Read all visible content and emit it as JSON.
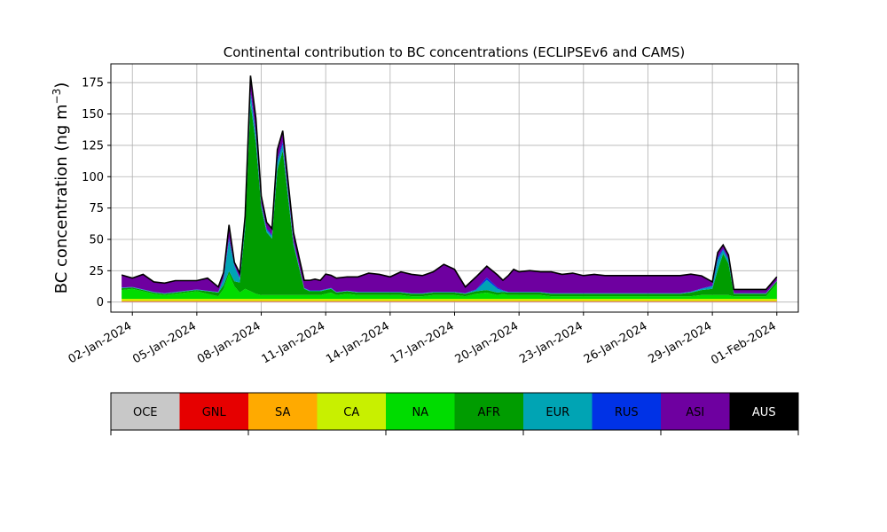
{
  "chart_data": {
    "type": "area",
    "stacked": true,
    "title": "Continental contribution to BC concentrations (ECLIPSEv6 and CAMS)",
    "xlabel": "",
    "ylabel": "BC concentration (ng m",
    "ylabel_sup": "−3",
    "ylabel_close": ")",
    "x_range": [
      "2024-01-01",
      "2024-02-02"
    ],
    "ylim": [
      -8,
      190
    ],
    "yticks": [
      0,
      25,
      50,
      75,
      100,
      125,
      150,
      175
    ],
    "xticks": [
      "02-Jan-2024",
      "05-Jan-2024",
      "08-Jan-2024",
      "11-Jan-2024",
      "14-Jan-2024",
      "17-Jan-2024",
      "20-Jan-2024",
      "23-Jan-2024",
      "26-Jan-2024",
      "29-Jan-2024",
      "01-Feb-2024"
    ],
    "xtick_dates": [
      "2024-01-02",
      "2024-01-05",
      "2024-01-08",
      "2024-01-11",
      "2024-01-14",
      "2024-01-17",
      "2024-01-20",
      "2024-01-23",
      "2024-01-26",
      "2024-01-29",
      "2024-02-01"
    ],
    "grid": true,
    "x": [
      "2024-01-01T12:00",
      "2024-01-02T00:00",
      "2024-01-02T12:00",
      "2024-01-03T00:00",
      "2024-01-03T12:00",
      "2024-01-04T00:00",
      "2024-01-04T12:00",
      "2024-01-05T00:00",
      "2024-01-05T12:00",
      "2024-01-06T00:00",
      "2024-01-06T06:00",
      "2024-01-06T12:00",
      "2024-01-06T18:00",
      "2024-01-07T00:00",
      "2024-01-07T06:00",
      "2024-01-07T12:00",
      "2024-01-07T18:00",
      "2024-01-08T00:00",
      "2024-01-08T06:00",
      "2024-01-08T12:00",
      "2024-01-08T18:00",
      "2024-01-09T00:00",
      "2024-01-09T12:00",
      "2024-01-10T00:00",
      "2024-01-10T06:00",
      "2024-01-10T12:00",
      "2024-01-10T18:00",
      "2024-01-11T00:00",
      "2024-01-11T06:00",
      "2024-01-11T12:00",
      "2024-01-12T00:00",
      "2024-01-12T12:00",
      "2024-01-13T00:00",
      "2024-01-13T12:00",
      "2024-01-14T00:00",
      "2024-01-14T12:00",
      "2024-01-15T00:00",
      "2024-01-15T12:00",
      "2024-01-16T00:00",
      "2024-01-16T12:00",
      "2024-01-17T00:00",
      "2024-01-17T12:00",
      "2024-01-18T00:00",
      "2024-01-18T12:00",
      "2024-01-19T00:00",
      "2024-01-19T06:00",
      "2024-01-19T12:00",
      "2024-01-19T18:00",
      "2024-01-20T00:00",
      "2024-01-20T12:00",
      "2024-01-21T00:00",
      "2024-01-21T12:00",
      "2024-01-22T00:00",
      "2024-01-22T12:00",
      "2024-01-23T00:00",
      "2024-01-23T12:00",
      "2024-01-24T00:00",
      "2024-01-24T12:00",
      "2024-01-25T00:00",
      "2024-01-25T12:00",
      "2024-01-26T00:00",
      "2024-01-26T12:00",
      "2024-01-27T00:00",
      "2024-01-27T12:00",
      "2024-01-28T00:00",
      "2024-01-28T12:00",
      "2024-01-29T00:00",
      "2024-01-29T06:00",
      "2024-01-29T12:00",
      "2024-01-29T18:00",
      "2024-01-30T00:00",
      "2024-01-30T12:00",
      "2024-01-31T00:00",
      "2024-01-31T12:00",
      "2024-02-01T00:00"
    ],
    "series": [
      {
        "name": "OCE",
        "color": "#c8c8c8",
        "values": [
          0.3,
          0.3,
          0.3,
          0.3,
          0.3,
          0.3,
          0.3,
          0.3,
          0.3,
          0.3,
          0.3,
          0.3,
          0.3,
          0.3,
          0.3,
          0.3,
          0.3,
          0.3,
          0.3,
          0.3,
          0.3,
          0.3,
          0.3,
          0.3,
          0.3,
          0.3,
          0.3,
          0.3,
          0.3,
          0.3,
          0.3,
          0.3,
          0.3,
          0.3,
          0.3,
          0.3,
          0.3,
          0.3,
          0.3,
          0.3,
          0.3,
          0.3,
          0.3,
          0.3,
          0.3,
          0.3,
          0.3,
          0.3,
          0.3,
          0.3,
          0.3,
          0.3,
          0.3,
          0.3,
          0.3,
          0.3,
          0.3,
          0.3,
          0.3,
          0.3,
          0.3,
          0.3,
          0.3,
          0.3,
          0.3,
          0.3,
          0.3,
          0.3,
          0.3,
          0.3,
          0.3,
          0.3,
          0.3,
          0.3,
          0.3
        ]
      },
      {
        "name": "GNL",
        "color": "#e60000",
        "values": [
          0.2,
          0.2,
          0.2,
          0.2,
          0.2,
          0.2,
          0.2,
          0.2,
          0.2,
          0.2,
          0.2,
          0.2,
          0.2,
          0.2,
          0.2,
          0.2,
          0.2,
          0.2,
          0.2,
          0.2,
          0.2,
          0.2,
          0.2,
          0.2,
          0.2,
          0.2,
          0.2,
          0.2,
          0.2,
          0.2,
          0.2,
          0.2,
          0.2,
          0.2,
          0.2,
          0.2,
          0.2,
          0.2,
          0.2,
          0.2,
          0.2,
          0.2,
          0.2,
          0.2,
          0.2,
          0.2,
          0.2,
          0.2,
          0.2,
          0.2,
          0.2,
          0.2,
          0.2,
          0.2,
          0.2,
          0.2,
          0.2,
          0.2,
          0.2,
          0.2,
          0.2,
          0.2,
          0.2,
          0.2,
          0.2,
          0.2,
          0.2,
          0.2,
          0.2,
          0.2,
          0.2,
          0.2,
          0.2,
          0.2,
          0.2
        ]
      },
      {
        "name": "SA",
        "color": "#ffaa00",
        "values": [
          0.6,
          0.6,
          0.6,
          0.6,
          0.6,
          0.6,
          0.6,
          0.6,
          0.6,
          0.6,
          0.6,
          0.6,
          0.6,
          0.6,
          0.6,
          0.6,
          0.6,
          0.6,
          0.6,
          0.6,
          0.6,
          0.6,
          0.6,
          0.6,
          0.6,
          0.6,
          0.6,
          0.6,
          0.6,
          0.6,
          0.6,
          0.6,
          0.6,
          0.6,
          0.6,
          0.6,
          0.6,
          0.6,
          0.6,
          0.6,
          0.6,
          0.6,
          0.6,
          0.6,
          0.6,
          0.6,
          0.6,
          0.6,
          0.6,
          0.6,
          0.6,
          0.6,
          0.6,
          0.6,
          0.6,
          0.6,
          0.6,
          0.6,
          0.6,
          0.6,
          0.6,
          0.6,
          0.6,
          0.6,
          0.6,
          0.6,
          0.6,
          0.6,
          0.6,
          0.6,
          0.6,
          0.6,
          0.6,
          0.6,
          0.6
        ]
      },
      {
        "name": "CA",
        "color": "#c8f000",
        "values": [
          1.5,
          1.5,
          1.5,
          1.5,
          1.5,
          1.5,
          1.5,
          1.5,
          1.5,
          1.5,
          1.5,
          1.5,
          1.5,
          1.5,
          1.5,
          1.5,
          1.5,
          1.5,
          1.5,
          1.5,
          1.5,
          1.5,
          1.5,
          1.5,
          1.5,
          1.5,
          1.5,
          1.5,
          1.5,
          1.5,
          1.5,
          1.5,
          1.5,
          1.5,
          1.5,
          1.5,
          1.5,
          1.5,
          1.5,
          1.5,
          1.5,
          1.5,
          1.5,
          1.5,
          1.5,
          1.5,
          1.5,
          1.5,
          1.5,
          1.5,
          1.5,
          1.5,
          1.5,
          1.5,
          1.5,
          1.5,
          1.5,
          1.5,
          1.5,
          1.5,
          1.5,
          1.5,
          1.5,
          1.5,
          1.5,
          1.5,
          1.5,
          1.5,
          1.5,
          1.5,
          1.5,
          1.5,
          1.5,
          1.5,
          1.5
        ]
      },
      {
        "name": "NA",
        "color": "#00dc00",
        "values": [
          7,
          8,
          6,
          4,
          3,
          4,
          5,
          6,
          4,
          2,
          8,
          20,
          10,
          5,
          8,
          6,
          4,
          3,
          3,
          3,
          3,
          3,
          3,
          3,
          3,
          3,
          3,
          4,
          5,
          3,
          4,
          3,
          3,
          3,
          3,
          3,
          2,
          2,
          3,
          3,
          3,
          2,
          4,
          5,
          3,
          4,
          3,
          3,
          3,
          3,
          3,
          2,
          2,
          2,
          2,
          2,
          2,
          2,
          2,
          2,
          2,
          2,
          2,
          2,
          2,
          3,
          3,
          3,
          3,
          3,
          2,
          2,
          2,
          2,
          12
        ]
      },
      {
        "name": "AFR",
        "color": "#009c00",
        "values": [
          1.5,
          1,
          1,
          1,
          1,
          1,
          1,
          1,
          2,
          3,
          3,
          2,
          4,
          8,
          48,
          150,
          120,
          70,
          50,
          45,
          100,
          115,
          40,
          5,
          3,
          3,
          3,
          3,
          3,
          2,
          2,
          2,
          2,
          2,
          2,
          2,
          2,
          2,
          2,
          2,
          2,
          2,
          2,
          2,
          2,
          1.5,
          2,
          2,
          2,
          2,
          2,
          2,
          2,
          2,
          2,
          2,
          2,
          2,
          2,
          2,
          2,
          2,
          2,
          2,
          3,
          4,
          5,
          20,
          33,
          25,
          2,
          2,
          2,
          2,
          2
        ]
      },
      {
        "name": "EUR",
        "color": "#00a4b4",
        "values": [
          0.3,
          0.3,
          0.3,
          0.3,
          0.3,
          0.3,
          0.3,
          0.3,
          0.3,
          0.3,
          5,
          25,
          12,
          3,
          5,
          8,
          6,
          2,
          2,
          2,
          6,
          5,
          2,
          0.5,
          0.5,
          0.5,
          0.5,
          0.5,
          0.5,
          0.3,
          0.3,
          0.3,
          0.3,
          0.3,
          0.3,
          0.3,
          0.3,
          0.3,
          0.3,
          0.3,
          0.3,
          0.3,
          1,
          8,
          3,
          1,
          0.3,
          0.3,
          0.3,
          0.3,
          0.3,
          0.3,
          0.3,
          0.3,
          0.3,
          0.3,
          0.3,
          0.3,
          0.3,
          0.3,
          0.3,
          0.3,
          0.3,
          0.3,
          0.5,
          1,
          2,
          8,
          3,
          3,
          0.3,
          0.3,
          0.3,
          0.3,
          0.3
        ]
      },
      {
        "name": "RUS",
        "color": "#0032e6",
        "values": [
          0.2,
          0.2,
          0.2,
          0.2,
          0.2,
          0.2,
          0.2,
          0.2,
          0.2,
          0.2,
          1,
          2,
          1,
          0.5,
          1,
          2,
          2,
          1,
          1,
          1,
          2,
          2,
          1,
          0.2,
          0.2,
          0.2,
          0.2,
          0.2,
          0.2,
          0.2,
          0.2,
          0.2,
          0.2,
          0.2,
          0.2,
          0.2,
          0.2,
          0.2,
          0.2,
          0.2,
          0.2,
          0.2,
          0.5,
          2,
          1,
          0.3,
          0.2,
          0.2,
          0.2,
          0.2,
          0.2,
          0.2,
          0.2,
          0.2,
          0.2,
          0.2,
          0.2,
          0.2,
          0.2,
          0.2,
          0.2,
          0.2,
          0.2,
          0.2,
          0.2,
          0.3,
          0.5,
          2,
          1,
          1,
          0.2,
          0.2,
          0.2,
          0.2,
          0.2
        ]
      },
      {
        "name": "ASI",
        "color": "#6e00a0",
        "values": [
          10,
          7,
          12,
          8,
          8,
          9,
          8,
          7,
          10,
          4,
          4,
          10,
          2,
          4,
          4,
          12,
          12,
          6,
          5,
          5,
          8,
          9,
          7,
          6,
          8,
          9,
          8,
          12,
          10,
          11,
          11,
          12,
          15,
          14,
          12,
          16,
          15,
          14,
          16,
          22,
          18,
          5,
          10,
          9,
          10,
          8,
          13,
          18,
          16,
          17,
          16,
          17,
          15,
          16,
          14,
          15,
          14,
          14,
          14,
          14,
          14,
          14,
          14,
          14,
          14,
          10,
          3,
          4,
          3,
          3,
          3,
          3,
          3,
          3,
          3
        ]
      },
      {
        "name": "AUS",
        "color": "#000000",
        "values": [
          0,
          0,
          0,
          0,
          0,
          0,
          0,
          0,
          0,
          0,
          0,
          0,
          0,
          0,
          0,
          0,
          0,
          0,
          0,
          0,
          0,
          0,
          0,
          0,
          0,
          0,
          0,
          0,
          0,
          0,
          0,
          0,
          0,
          0,
          0,
          0,
          0,
          0,
          0,
          0,
          0,
          0,
          0,
          0,
          0,
          0,
          0,
          0,
          0,
          0,
          0,
          0,
          0,
          0,
          0,
          0,
          0,
          0,
          0,
          0,
          0,
          0,
          0,
          0,
          0,
          0,
          0,
          0,
          0,
          0,
          0,
          0,
          0,
          0,
          0
        ]
      }
    ],
    "colorbar": {
      "labels": [
        "OCE",
        "GNL",
        "SA",
        "CA",
        "NA",
        "AFR",
        "EUR",
        "RUS",
        "ASI",
        "AUS"
      ],
      "colors": [
        "#c8c8c8",
        "#e60000",
        "#ffaa00",
        "#c8f000",
        "#00dc00",
        "#009c00",
        "#00a4b4",
        "#0032e6",
        "#6e00a0",
        "#000000"
      ],
      "label_colors": [
        "#000000",
        "#000000",
        "#000000",
        "#000000",
        "#000000",
        "#000000",
        "#000000",
        "#000000",
        "#000000",
        "#ffffff"
      ]
    }
  }
}
